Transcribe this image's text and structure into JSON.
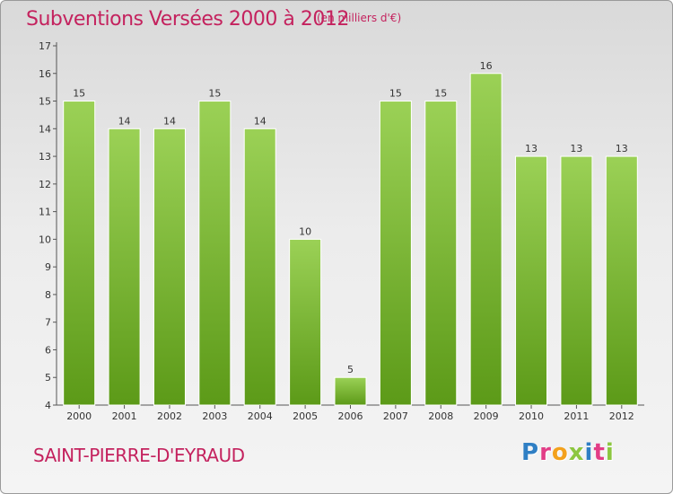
{
  "title": "Subventions Versées 2000 à 2012",
  "subtitle": "(en milliers d'€)",
  "commune": "SAINT-PIERRE-D'EYRAUD",
  "logo": {
    "letters": [
      "P",
      "r",
      "o",
      "x",
      "i",
      "t",
      "i"
    ],
    "colors": [
      "#2f7fc4",
      "#e23d86",
      "#f3a11c",
      "#8cc63f",
      "#2f7fc4",
      "#e23d86",
      "#8cc63f"
    ]
  },
  "colors": {
    "title": "#c4225e",
    "bar_light": "#9bd156",
    "bar_dark": "#5c9a18",
    "axis": "#555555"
  },
  "chart_data": {
    "type": "bar",
    "categories": [
      "2000",
      "2001",
      "2002",
      "2003",
      "2004",
      "2005",
      "2006",
      "2007",
      "2008",
      "2009",
      "2010",
      "2011",
      "2012"
    ],
    "values": [
      15,
      14,
      14,
      15,
      14,
      10,
      5,
      15,
      15,
      16,
      13,
      13,
      13
    ],
    "data_labels": [
      "15",
      "14",
      "14",
      "15",
      "14",
      "10",
      "5",
      "15",
      "15",
      "16",
      "13",
      "13",
      "13"
    ],
    "y_ticks": [
      "4",
      "5",
      "6",
      "7",
      "8",
      "9",
      "10",
      "11",
      "12",
      "13",
      "14",
      "15",
      "16",
      "17"
    ],
    "ylim": [
      4,
      17
    ],
    "grid": false,
    "xlabel": "",
    "ylabel": ""
  }
}
